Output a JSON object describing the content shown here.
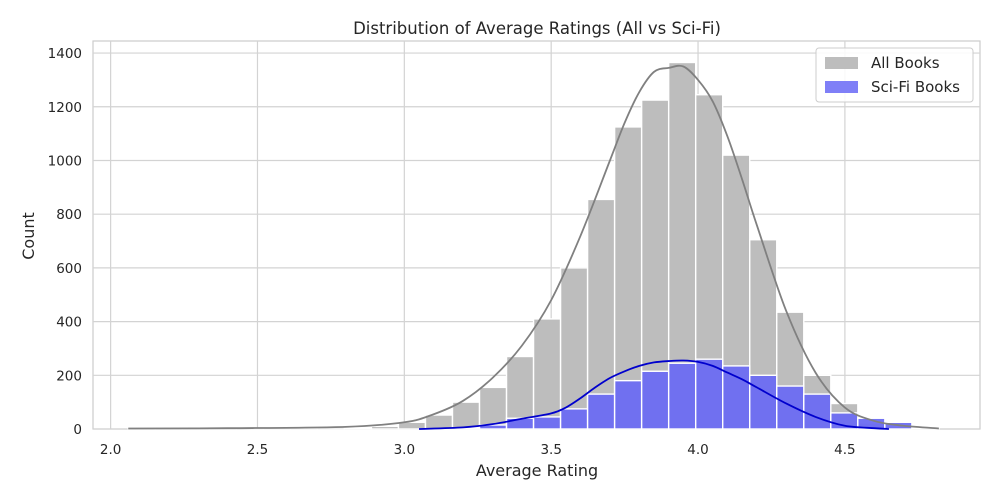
{
  "chart_data": {
    "type": "bar",
    "title": "Distribution of Average Ratings (All vs Sci-Fi)",
    "xlabel": "Average Rating",
    "ylabel": "Count",
    "xlim": [
      1.94,
      4.96
    ],
    "ylim": [
      0,
      1445
    ],
    "xticks": [
      "2.0",
      "2.5",
      "3.0",
      "3.5",
      "4.0",
      "4.5"
    ],
    "xtick_values": [
      2.0,
      2.5,
      3.0,
      3.5,
      4.0,
      4.5
    ],
    "yticks": [
      "0",
      "200",
      "400",
      "600",
      "800",
      "1000",
      "1200",
      "1400"
    ],
    "ytick_values": [
      0,
      200,
      400,
      600,
      800,
      1000,
      1200,
      1400
    ],
    "grid": true,
    "legend_position": "top-right",
    "series": [
      {
        "name": "All Books",
        "color": "#808080",
        "fill": "#bdbdbd",
        "bin_edges": [
          2.06,
          2.152,
          2.244,
          2.336,
          2.428,
          2.52,
          2.612,
          2.704,
          2.796,
          2.888,
          2.98,
          3.072,
          3.164,
          3.256,
          3.348,
          3.44,
          3.532,
          3.624,
          3.716,
          3.808,
          3.9,
          3.992,
          4.084,
          4.176,
          4.268,
          4.36,
          4.452,
          4.544,
          4.636,
          4.728,
          4.82
        ],
        "values": [
          2,
          1,
          1,
          1,
          1,
          3,
          4,
          6,
          5,
          10,
          25,
          52,
          100,
          155,
          270,
          410,
          600,
          855,
          1125,
          1225,
          1365,
          1245,
          1020,
          705,
          435,
          200,
          95,
          22,
          10,
          4
        ],
        "kde_x": [
          2.06,
          2.4,
          2.8,
          3.0,
          3.1,
          3.2,
          3.3,
          3.4,
          3.5,
          3.6,
          3.7,
          3.75,
          3.8,
          3.85,
          3.9,
          3.95,
          4.0,
          4.05,
          4.1,
          4.15,
          4.2,
          4.3,
          4.4,
          4.5,
          4.6,
          4.7,
          4.82
        ],
        "kde_y": [
          2,
          3,
          8,
          25,
          55,
          105,
          190,
          310,
          480,
          720,
          1000,
          1140,
          1255,
          1330,
          1345,
          1350,
          1300,
          1220,
          1090,
          930,
          760,
          440,
          210,
          80,
          30,
          12,
          2
        ]
      },
      {
        "name": "Sci-Fi Books",
        "color": "#0000cd",
        "fill": "#6b6bf2",
        "bin_edges": [
          3.072,
          3.164,
          3.256,
          3.348,
          3.44,
          3.532,
          3.624,
          3.716,
          3.808,
          3.9,
          3.992,
          4.084,
          4.176,
          4.268,
          4.36,
          4.452,
          4.544,
          4.636,
          4.728
        ],
        "values": [
          1,
          5,
          15,
          40,
          45,
          75,
          130,
          180,
          215,
          245,
          260,
          235,
          200,
          160,
          130,
          60,
          40,
          25
        ],
        "kde_x": [
          3.05,
          3.2,
          3.3,
          3.4,
          3.5,
          3.55,
          3.6,
          3.65,
          3.7,
          3.75,
          3.8,
          3.85,
          3.9,
          3.95,
          4.0,
          4.05,
          4.1,
          4.15,
          4.2,
          4.3,
          4.4,
          4.5,
          4.6,
          4.65
        ],
        "kde_y": [
          0,
          6,
          18,
          38,
          58,
          80,
          115,
          155,
          190,
          215,
          235,
          248,
          253,
          255,
          250,
          235,
          210,
          185,
          155,
          95,
          45,
          12,
          3,
          0
        ]
      }
    ]
  }
}
